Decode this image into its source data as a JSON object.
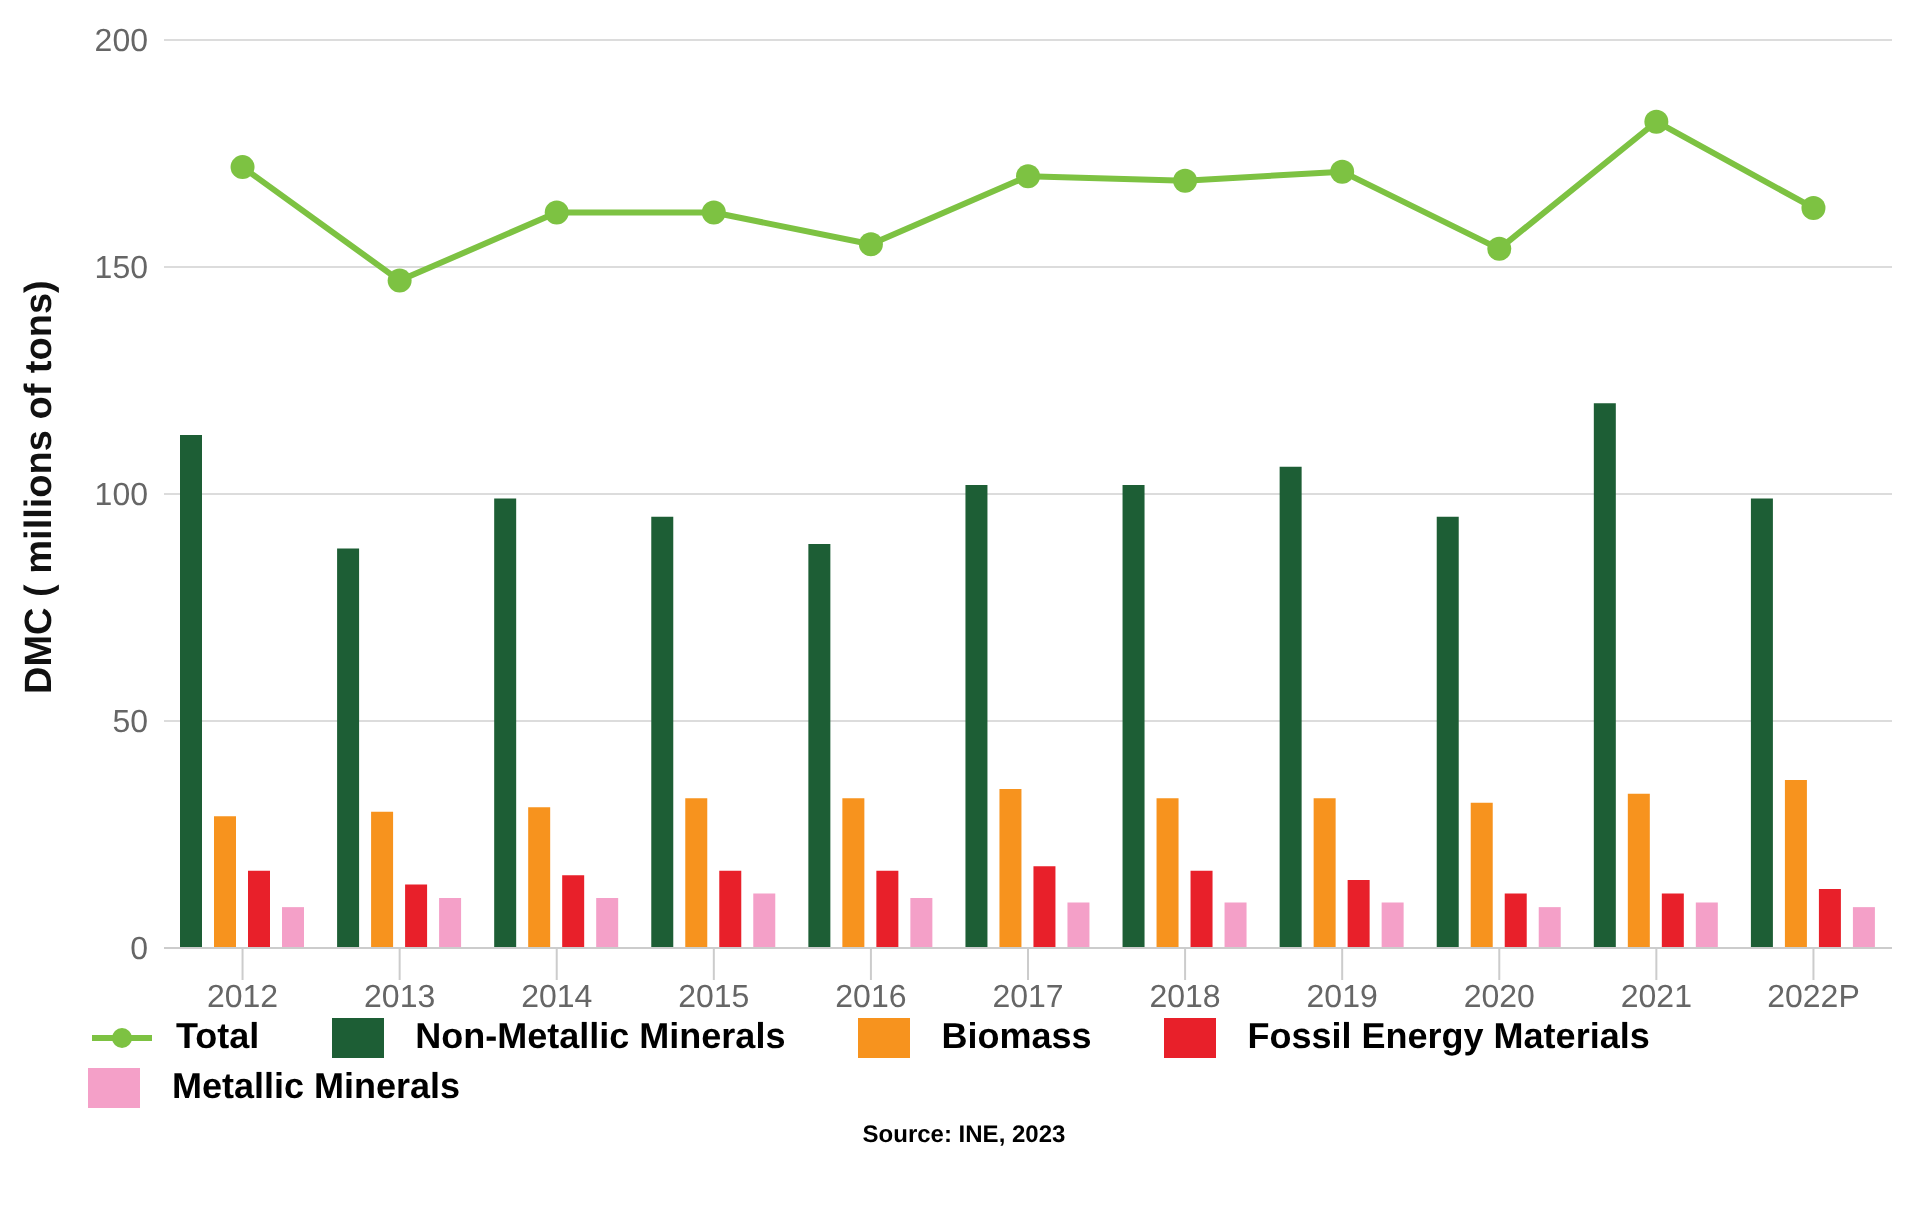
{
  "chart_data": {
    "type": "bar",
    "ylabel": "DMC ( millions of tons)",
    "categories": [
      "2012",
      "2013",
      "2014",
      "2015",
      "2016",
      "2017",
      "2018",
      "2019",
      "2020",
      "2021",
      "2022P"
    ],
    "series": [
      {
        "name": "Total",
        "type": "line",
        "color": "#7dc242",
        "values": [
          172,
          147,
          162,
          162,
          155,
          170,
          169,
          171,
          154,
          182,
          163
        ]
      },
      {
        "name": "Non-Metallic Minerals",
        "color": "#1d5e35",
        "values": [
          113,
          88,
          99,
          95,
          89,
          102,
          102,
          106,
          95,
          120,
          99
        ]
      },
      {
        "name": "Biomass",
        "color": "#f7931e",
        "values": [
          29,
          30,
          31,
          33,
          33,
          35,
          33,
          33,
          32,
          34,
          37
        ]
      },
      {
        "name": "Fossil Energy Materials",
        "color": "#e8202a",
        "values": [
          17,
          14,
          16,
          17,
          17,
          18,
          17,
          15,
          12,
          12,
          13
        ]
      },
      {
        "name": "Metallic Minerals",
        "color": "#f4a0c8",
        "values": [
          9,
          11,
          11,
          12,
          11,
          10,
          10,
          10,
          9,
          10,
          9
        ]
      }
    ],
    "ylim": [
      0,
      200
    ],
    "yticks": [
      0,
      50,
      100,
      150,
      200
    ],
    "grid": "y",
    "legend": "bottom",
    "marker": "circle",
    "annotations": [
      "Source: INE, 2023"
    ]
  }
}
